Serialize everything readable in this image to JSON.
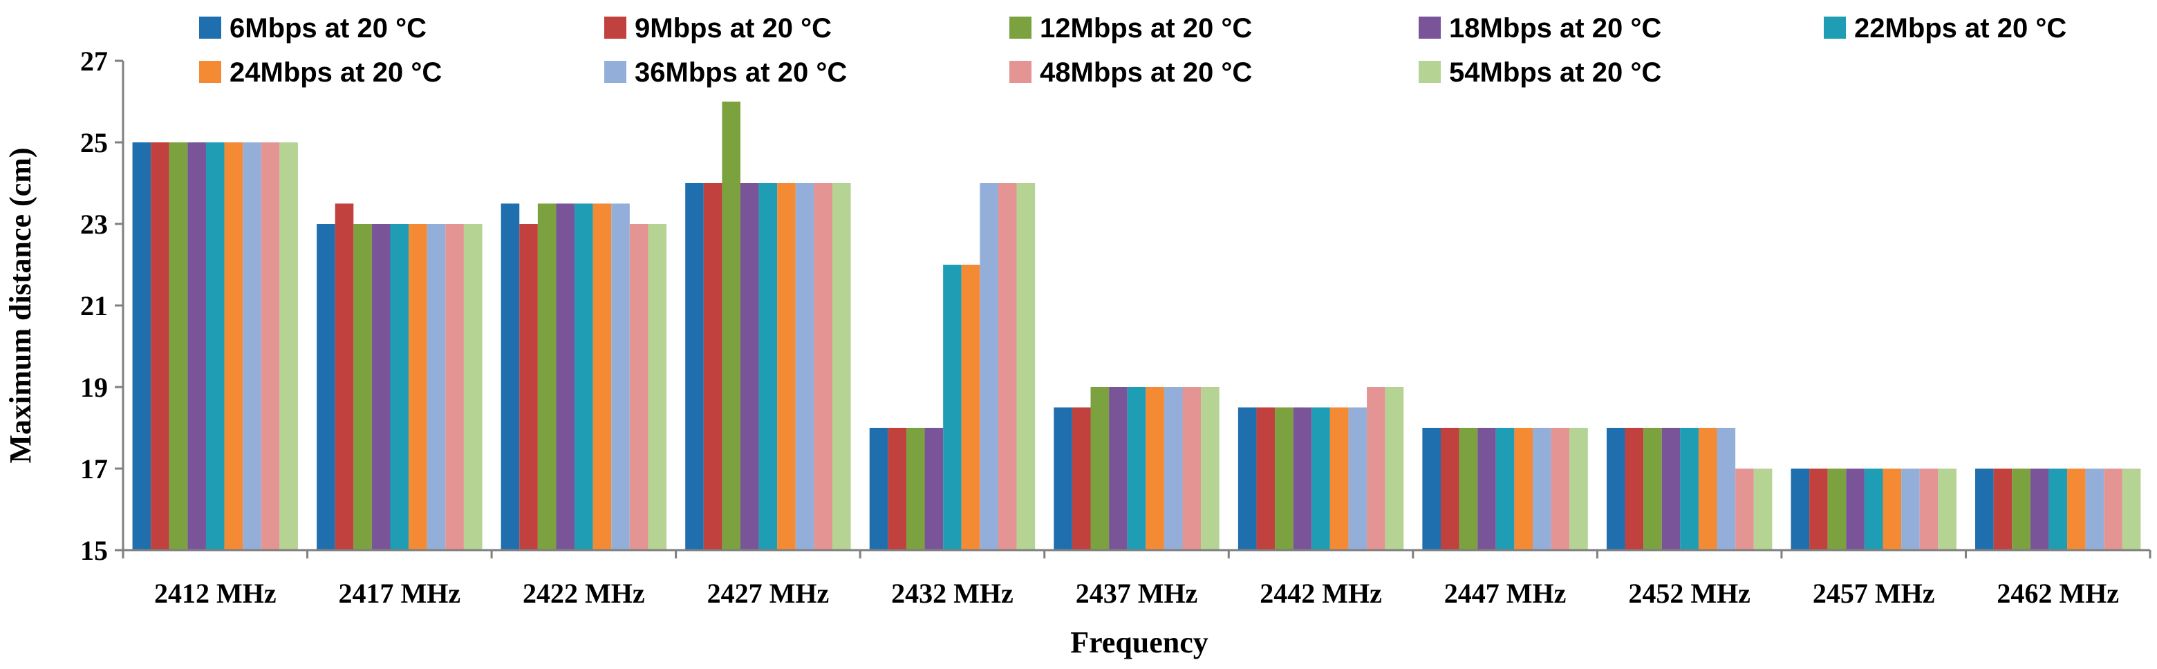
{
  "chart_data": {
    "type": "bar",
    "title": "",
    "xlabel": "Frequency",
    "ylabel": "Maximum distance (cm)",
    "ylim": [
      15,
      27
    ],
    "yticks": [
      "15",
      "17",
      "19",
      "21",
      "23",
      "25",
      "27"
    ],
    "grid": false,
    "legend_position": "top",
    "categories": [
      "2412 MHz",
      "2417 MHz",
      "2422 MHz",
      "2427 MHz",
      "2432 MHz",
      "2437 MHz",
      "2442 MHz",
      "2447 MHz",
      "2452 MHz",
      "2457 MHz",
      "2462 MHz"
    ],
    "series": [
      {
        "name": "6Mbps at 20 °C",
        "color": "#1F6FAE",
        "values": [
          25,
          23,
          23.5,
          24,
          18,
          18.5,
          18.5,
          18,
          18,
          17,
          17
        ]
      },
      {
        "name": "9Mbps at 20 °C",
        "color": "#C0413E",
        "values": [
          25,
          23.5,
          23,
          24,
          18,
          18.5,
          18.5,
          18,
          18,
          17,
          17
        ]
      },
      {
        "name": "12Mbps at 20 °C",
        "color": "#7BA23F",
        "values": [
          25,
          23,
          23.5,
          26,
          18,
          19,
          18.5,
          18,
          18,
          17,
          17
        ]
      },
      {
        "name": "18Mbps at 20 °C",
        "color": "#7A5499",
        "values": [
          25,
          23,
          23.5,
          24,
          18,
          19,
          18.5,
          18,
          18,
          17,
          17
        ]
      },
      {
        "name": "22Mbps at 20 °C",
        "color": "#1E9DB5",
        "values": [
          25,
          23,
          23.5,
          24,
          22,
          19,
          18.5,
          18,
          18,
          17,
          17
        ]
      },
      {
        "name": "24Mbps at 20 °C",
        "color": "#F58A35",
        "values": [
          25,
          23,
          23.5,
          24,
          22,
          19,
          18.5,
          18,
          18,
          17,
          17
        ]
      },
      {
        "name": "36Mbps at 20 °C",
        "color": "#93AFD9",
        "values": [
          25,
          23,
          23.5,
          24,
          24,
          19,
          18.5,
          18,
          18,
          17,
          17
        ]
      },
      {
        "name": "48Mbps at 20 °C",
        "color": "#E59494",
        "values": [
          25,
          23,
          23,
          24,
          24,
          19,
          19,
          18,
          17,
          17,
          17
        ]
      },
      {
        "name": "54Mbps at 20 °C",
        "color": "#B5D494",
        "values": [
          25,
          23,
          23,
          24,
          24,
          19,
          19,
          18,
          17,
          17,
          17
        ]
      }
    ]
  }
}
